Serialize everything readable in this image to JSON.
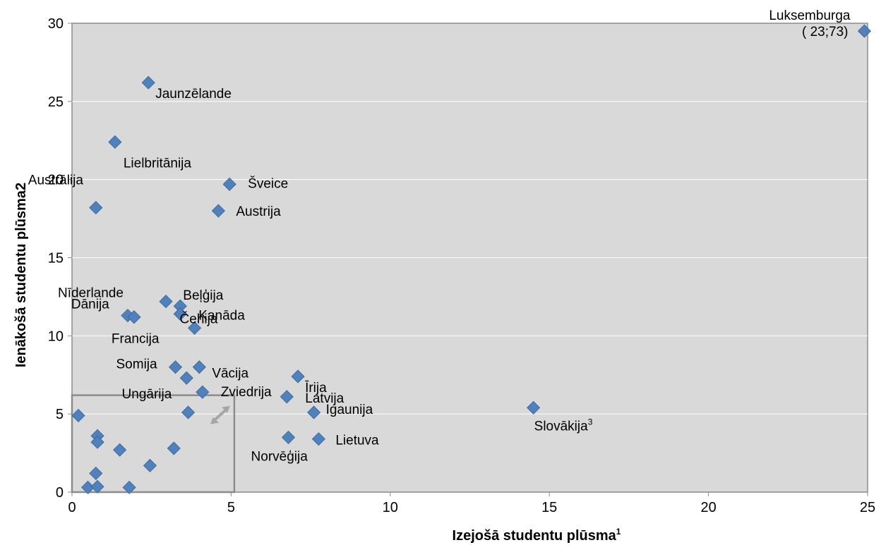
{
  "chart_data": {
    "type": "scatter",
    "xlabel": "Izejošā studentu plūsma",
    "xlabel_sup": "1",
    "ylabel": "Ienākošā studentu plūsma2",
    "xlim": [
      0,
      25
    ],
    "ylim": [
      0,
      30
    ],
    "xticks": [
      0,
      5,
      10,
      15,
      20,
      25
    ],
    "yticks": [
      0,
      5,
      10,
      15,
      20,
      25,
      30
    ],
    "grid": "horizontal",
    "marker_color": "#4F81BD",
    "plot_background": "#D9D9D9",
    "points": [
      {
        "label": "Luksemburga",
        "note": "( 23;73)",
        "x": 24.9,
        "y": 29.5
      },
      {
        "label": "Jaunzēlande",
        "x": 2.4,
        "y": 26.2
      },
      {
        "label": "Lielbritānija",
        "x": 1.35,
        "y": 22.4
      },
      {
        "label": "Šveice",
        "x": 4.95,
        "y": 19.7
      },
      {
        "label": "Austrālija",
        "x": 0.75,
        "y": 18.2
      },
      {
        "label": "Austrija",
        "x": 4.6,
        "y": 18.0
      },
      {
        "label": "Beļģija",
        "x": 3.4,
        "y": 11.9
      },
      {
        "label": "Nīderlande",
        "x": 2.95,
        "y": 12.2
      },
      {
        "label": "Kanāda",
        "x": 3.4,
        "y": 11.4
      },
      {
        "label": "Dānija",
        "x": 1.75,
        "y": 11.3
      },
      {
        "label": "",
        "x": 1.95,
        "y": 11.2
      },
      {
        "label": "Čehija",
        "x": 3.85,
        "y": 10.5
      },
      {
        "label": "Francija",
        "x": 1.95,
        "y": 11.2
      },
      {
        "label": "Somija",
        "x": 3.25,
        "y": 8.0
      },
      {
        "label": "Vācija",
        "x": 4.0,
        "y": 8.0
      },
      {
        "label": "",
        "x": 3.6,
        "y": 7.3
      },
      {
        "label": "Ungārija",
        "x": 3.65,
        "y": 5.1
      },
      {
        "label": "Zviedrija",
        "x": 4.1,
        "y": 6.4
      },
      {
        "label": "Īrija",
        "x": 7.1,
        "y": 7.4
      },
      {
        "label": "Latvija",
        "x": 6.75,
        "y": 6.1
      },
      {
        "label": "Igaunija",
        "x": 7.6,
        "y": 5.1
      },
      {
        "label": "Slovākija",
        "label_sup": "3",
        "x": 14.5,
        "y": 5.4
      },
      {
        "label": "Norvēģija",
        "x": 6.8,
        "y": 3.5
      },
      {
        "label": "Lietuva",
        "x": 7.75,
        "y": 3.4
      },
      {
        "label": "",
        "x": 0.2,
        "y": 4.9
      },
      {
        "label": "",
        "x": 0.8,
        "y": 3.6
      },
      {
        "label": "",
        "x": 0.8,
        "y": 3.2
      },
      {
        "label": "",
        "x": 1.5,
        "y": 2.7
      },
      {
        "label": "",
        "x": 3.2,
        "y": 2.8
      },
      {
        "label": "",
        "x": 2.45,
        "y": 1.7
      },
      {
        "label": "",
        "x": 0.75,
        "y": 1.2
      },
      {
        "label": "",
        "x": 0.5,
        "y": 0.3
      },
      {
        "label": "",
        "x": 0.8,
        "y": 0.35
      },
      {
        "label": "",
        "x": 1.8,
        "y": 0.3
      }
    ],
    "zoom_box": {
      "x0": 0,
      "x1": 5.1,
      "y0": 0,
      "y1": 6.2
    }
  }
}
